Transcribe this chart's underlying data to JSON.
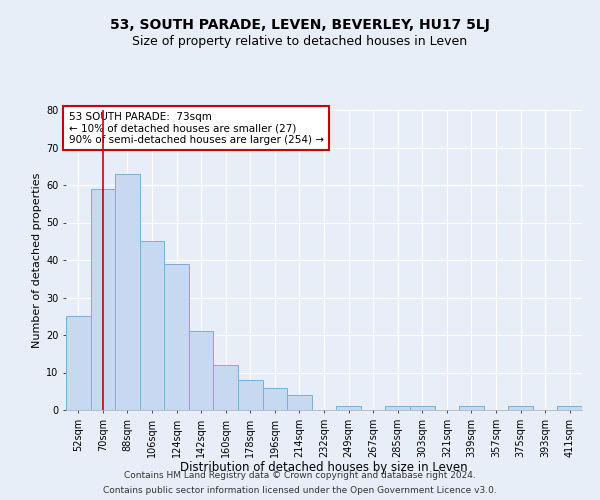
{
  "title1": "53, SOUTH PARADE, LEVEN, BEVERLEY, HU17 5LJ",
  "title2": "Size of property relative to detached houses in Leven",
  "xlabel": "Distribution of detached houses by size in Leven",
  "ylabel": "Number of detached properties",
  "categories": [
    "52sqm",
    "70sqm",
    "88sqm",
    "106sqm",
    "124sqm",
    "142sqm",
    "160sqm",
    "178sqm",
    "196sqm",
    "214sqm",
    "232sqm",
    "249sqm",
    "267sqm",
    "285sqm",
    "303sqm",
    "321sqm",
    "339sqm",
    "357sqm",
    "375sqm",
    "393sqm",
    "411sqm"
  ],
  "values": [
    25,
    59,
    63,
    45,
    39,
    21,
    12,
    8,
    6,
    4,
    0,
    1,
    0,
    1,
    1,
    0,
    1,
    0,
    1,
    0,
    1
  ],
  "bar_color": "#c6d9f1",
  "bar_edge_color": "#7aafd4",
  "reference_line_x": 1,
  "reference_line_color": "#cc0000",
  "ylim": [
    0,
    80
  ],
  "yticks": [
    0,
    10,
    20,
    30,
    40,
    50,
    60,
    70,
    80
  ],
  "annotation_box_text": "53 SOUTH PARADE:  73sqm\n← 10% of detached houses are smaller (27)\n90% of semi-detached houses are larger (254) →",
  "annotation_box_color": "#ffffff",
  "annotation_box_edge_color": "#cc0000",
  "footer1": "Contains HM Land Registry data © Crown copyright and database right 2024.",
  "footer2": "Contains public sector information licensed under the Open Government Licence v3.0.",
  "background_color": "#e8eef7",
  "plot_bg_color": "#e8eef7",
  "grid_color": "#ffffff",
  "title1_fontsize": 10,
  "title2_fontsize": 9,
  "xlabel_fontsize": 8.5,
  "ylabel_fontsize": 8,
  "tick_fontsize": 7,
  "footer_fontsize": 6.5
}
